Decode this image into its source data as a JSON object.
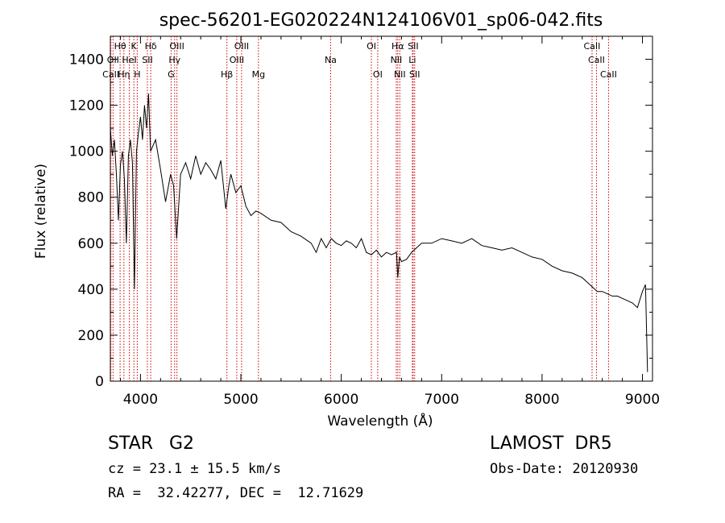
{
  "chart_data": {
    "type": "line",
    "title": "spec-56201-EG020224N124106V01_sp06-042.fits",
    "xlabel": "Wavelength (Å)",
    "ylabel": "Flux (relative)",
    "xlim": [
      3700,
      9100
    ],
    "ylim": [
      0,
      1500
    ],
    "xticks": [
      4000,
      5000,
      6000,
      7000,
      8000,
      9000
    ],
    "yticks": [
      0,
      200,
      400,
      600,
      800,
      1000,
      1200,
      1400
    ],
    "grid": false,
    "series": [
      {
        "x": [
          3700,
          3720,
          3740,
          3760,
          3780,
          3800,
          3820,
          3840,
          3860,
          3880,
          3900,
          3920,
          3940,
          3960,
          3980,
          4000,
          4020,
          4040,
          4060,
          4080,
          4100,
          4150,
          4200,
          4250,
          4300,
          4330,
          4360,
          4400,
          4450,
          4500,
          4550,
          4600,
          4650,
          4700,
          4750,
          4800,
          4850,
          4880,
          4900,
          4950,
          5000,
          5050,
          5100,
          5150,
          5200,
          5300,
          5400,
          5500,
          5600,
          5700,
          5750,
          5800,
          5850,
          5900,
          5950,
          6000,
          6050,
          6100,
          6150,
          6200,
          6250,
          6300,
          6350,
          6400,
          6450,
          6500,
          6550,
          6563,
          6580,
          6600,
          6650,
          6700,
          6750,
          6800,
          6900,
          7000,
          7100,
          7200,
          7300,
          7400,
          7500,
          7600,
          7700,
          7800,
          7900,
          8000,
          8100,
          8200,
          8300,
          8400,
          8450,
          8500,
          8550,
          8600,
          8650,
          8700,
          8750,
          8800,
          8850,
          8900,
          8950,
          9000,
          9030,
          9050
        ],
        "y": [
          1100,
          980,
          1050,
          900,
          700,
          940,
          1000,
          880,
          600,
          980,
          1050,
          950,
          400,
          1000,
          1080,
          1150,
          1050,
          1200,
          1100,
          1250,
          1000,
          1050,
          920,
          780,
          900,
          850,
          620,
          900,
          950,
          880,
          980,
          900,
          950,
          920,
          880,
          960,
          750,
          850,
          900,
          820,
          850,
          760,
          720,
          740,
          730,
          700,
          690,
          650,
          630,
          600,
          560,
          620,
          580,
          620,
          600,
          590,
          610,
          600,
          580,
          620,
          560,
          550,
          570,
          540,
          560,
          550,
          560,
          450,
          540,
          520,
          530,
          560,
          580,
          600,
          600,
          620,
          610,
          600,
          620,
          590,
          580,
          570,
          580,
          560,
          540,
          530,
          500,
          480,
          470,
          450,
          430,
          410,
          390,
          390,
          380,
          370,
          370,
          360,
          350,
          340,
          320,
          390,
          420,
          40
        ]
      }
    ],
    "lines": [
      {
        "name": "CaII",
        "x": 3705,
        "row": 3
      },
      {
        "name": "Hθ",
        "x": 3797,
        "row": 1
      },
      {
        "name": "Hη",
        "x": 3835,
        "row": 3
      },
      {
        "name": "HeI",
        "x": 3889,
        "row": 2
      },
      {
        "name": "K",
        "x": 3934,
        "row": 1
      },
      {
        "name": "H",
        "x": 3968,
        "row": 3
      },
      {
        "name": "SII",
        "x": 4069,
        "row": 2
      },
      {
        "name": "Hδ",
        "x": 4102,
        "row": 1
      },
      {
        "name": "OII",
        "x": 3727,
        "row": 2
      },
      {
        "name": "G",
        "x": 4305,
        "row": 3
      },
      {
        "name": "Hγ",
        "x": 4340,
        "row": 2
      },
      {
        "name": "OIII",
        "x": 4363,
        "row": 1
      },
      {
        "name": "Hβ",
        "x": 4861,
        "row": 3
      },
      {
        "name": "OIII",
        "x": 4959,
        "row": 2
      },
      {
        "name": "OIII",
        "x": 5007,
        "row": 1
      },
      {
        "name": "Mg",
        "x": 5175,
        "row": 3
      },
      {
        "name": "Na",
        "x": 5894,
        "row": 2
      },
      {
        "name": "OI",
        "x": 6300,
        "row": 1
      },
      {
        "name": "OI",
        "x": 6363,
        "row": 3
      },
      {
        "name": "NII",
        "x": 6548,
        "row": 2
      },
      {
        "name": "Hα",
        "x": 6563,
        "row": 1
      },
      {
        "name": "NII",
        "x": 6583,
        "row": 3
      },
      {
        "name": "Li",
        "x": 6708,
        "row": 2
      },
      {
        "name": "SII",
        "x": 6716,
        "row": 1
      },
      {
        "name": "SII",
        "x": 6731,
        "row": 3
      },
      {
        "name": "CaII",
        "x": 8498,
        "row": 1
      },
      {
        "name": "CaII",
        "x": 8542,
        "row": 2
      },
      {
        "name": "CaII",
        "x": 8662,
        "row": 3
      }
    ]
  },
  "info": {
    "object_class": "STAR",
    "subclass": "G2",
    "survey": "LAMOST  DR5",
    "cz": "cz = 23.1 ± 15.5 km/s",
    "obs_date": "Obs-Date: 20120930",
    "ra_dec": "RA =  32.42277, DEC =  12.71629"
  }
}
